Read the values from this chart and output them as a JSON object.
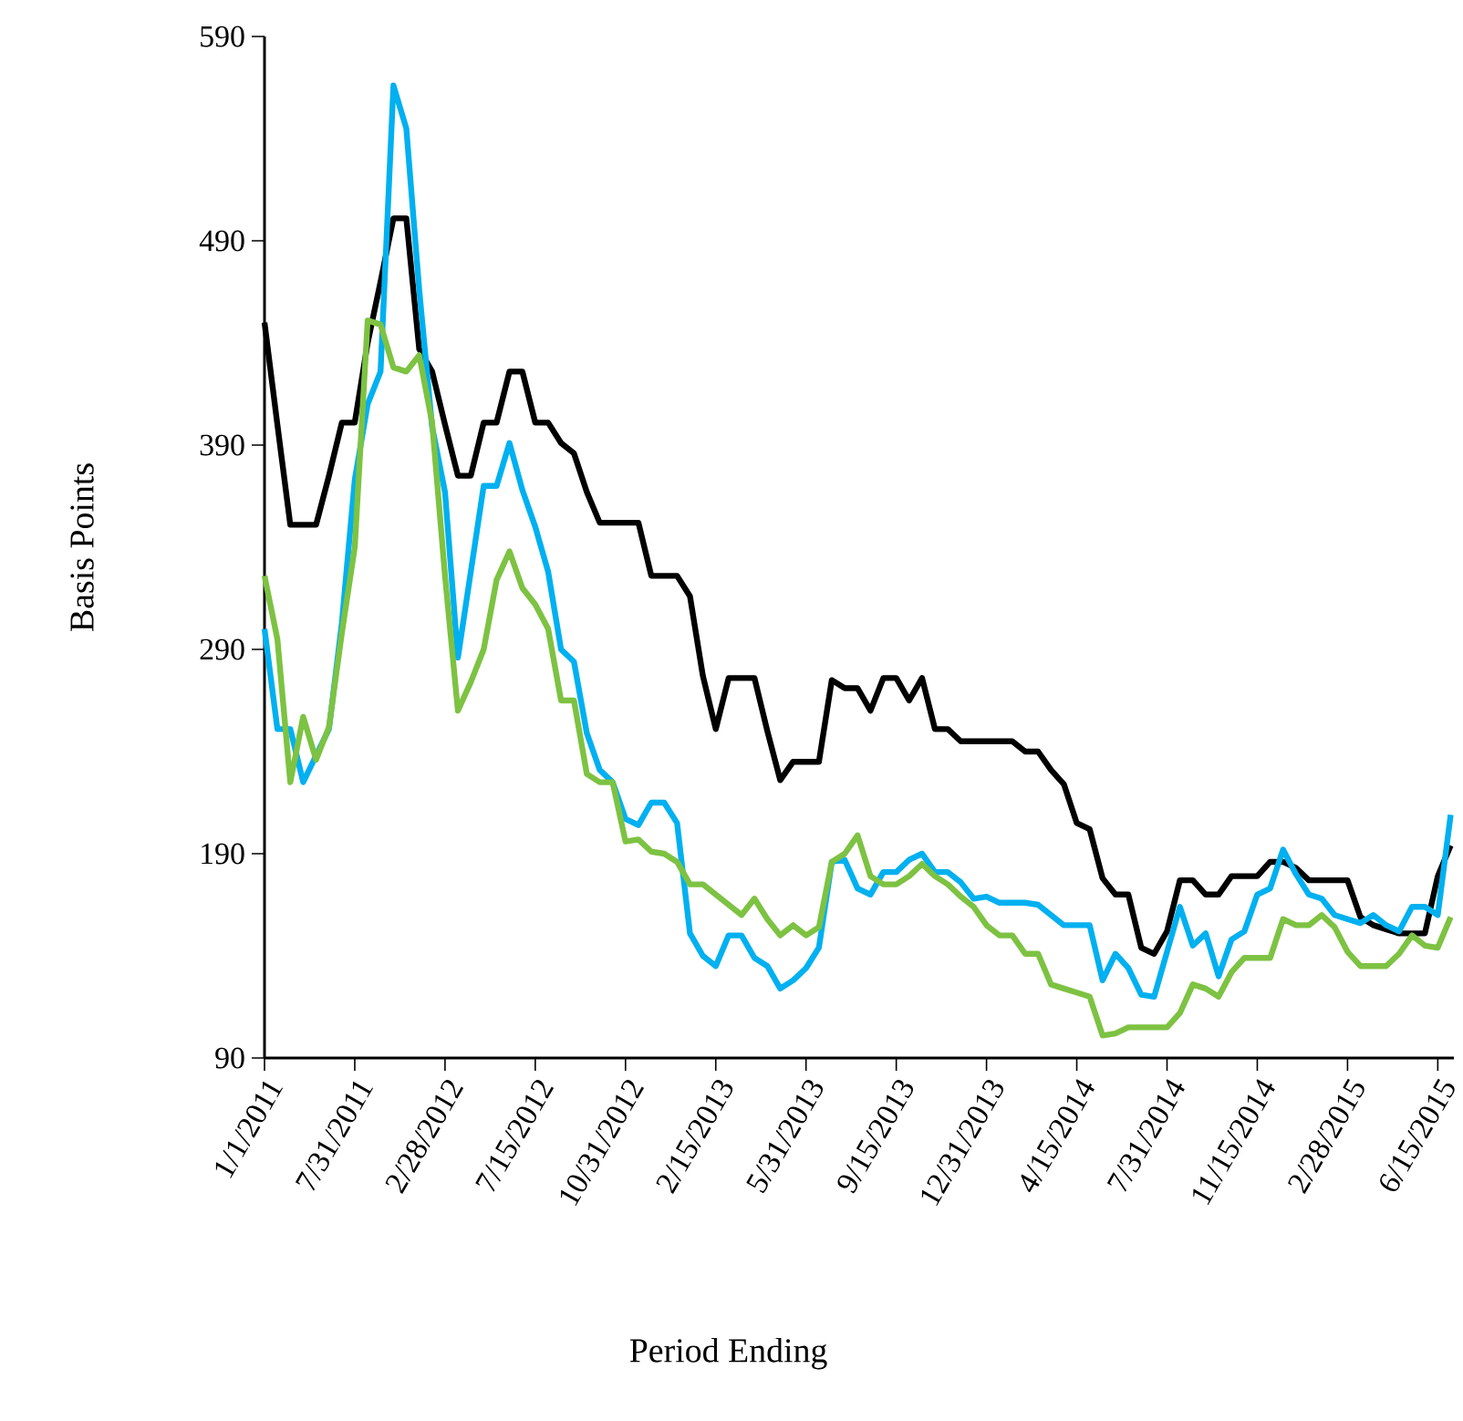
{
  "chart_data": {
    "type": "line",
    "xlabel": "Period Ending",
    "ylabel": "Basis Points",
    "categories": [
      "1/1/2011",
      null,
      null,
      null,
      null,
      null,
      null,
      "7/31/2011",
      null,
      null,
      null,
      null,
      null,
      null,
      "2/28/2012",
      null,
      null,
      null,
      null,
      null,
      null,
      "7/15/2012",
      null,
      null,
      null,
      null,
      null,
      null,
      "10/31/2012",
      null,
      null,
      null,
      null,
      null,
      null,
      "2/15/2013",
      null,
      null,
      null,
      null,
      null,
      null,
      "5/31/2013",
      null,
      null,
      null,
      null,
      null,
      null,
      "9/15/2013",
      null,
      null,
      null,
      null,
      null,
      null,
      "12/31/2013",
      null,
      null,
      null,
      null,
      null,
      null,
      "4/15/2014",
      null,
      null,
      null,
      null,
      null,
      null,
      "7/31/2014",
      null,
      null,
      null,
      null,
      null,
      null,
      "11/15/2014",
      null,
      null,
      null,
      null,
      null,
      null,
      "2/28/2015",
      null,
      null,
      null,
      null,
      null,
      null,
      "6/15/2015",
      null
    ],
    "series": [
      {
        "color": "#000000",
        "values": [
          450,
          400,
          351,
          351,
          351,
          375,
          401,
          401,
          440,
          470,
          501,
          501,
          437,
          426,
          400,
          375,
          375,
          401,
          401,
          426,
          426,
          401,
          401,
          391,
          386,
          367,
          352,
          352,
          352,
          352,
          326,
          326,
          326,
          316,
          277,
          251,
          276,
          276,
          276,
          250,
          226,
          235,
          235,
          235,
          275,
          271,
          271,
          260,
          276,
          276,
          265,
          276,
          251,
          251,
          245,
          245,
          245,
          245,
          245,
          240,
          240,
          231,
          224,
          205,
          202,
          178,
          170,
          170,
          144,
          141,
          152,
          177,
          177,
          170,
          170,
          179,
          179,
          179,
          186,
          186,
          183,
          177,
          177,
          177,
          177,
          159,
          155,
          153,
          151,
          151,
          151,
          179,
          194
        ]
      },
      {
        "color": "#00b0f0",
        "values": [
          300,
          251,
          251,
          225,
          238,
          251,
          303,
          373,
          410,
          426,
          566,
          545,
          466,
          399,
          367,
          286,
          328,
          370,
          370,
          391,
          368,
          350,
          328,
          290,
          284,
          249,
          231,
          225,
          207,
          204,
          215,
          215,
          205,
          151,
          140,
          135,
          150,
          150,
          139,
          135,
          124,
          128,
          134,
          144,
          186,
          187,
          173,
          170,
          181,
          181,
          187,
          190,
          181,
          181,
          176,
          168,
          169,
          166,
          166,
          166,
          165,
          160,
          155,
          155,
          155,
          128,
          141,
          134,
          121,
          120,
          142,
          164,
          145,
          151,
          130,
          148,
          152,
          170,
          173,
          192,
          180,
          170,
          168,
          160,
          158,
          156,
          160,
          155,
          152,
          164,
          164,
          160,
          209
        ]
      },
      {
        "color": "#7dc242",
        "values": [
          326,
          295,
          225,
          257,
          236,
          252,
          298,
          340,
          451,
          449,
          428,
          426,
          434,
          401,
          326,
          260,
          274,
          290,
          324,
          338,
          320,
          312,
          300,
          265,
          265,
          229,
          225,
          225,
          196,
          197,
          191,
          190,
          186,
          175,
          175,
          170,
          165,
          160,
          168,
          158,
          150,
          155,
          150,
          154,
          186,
          190,
          199,
          179,
          175,
          175,
          179,
          185,
          179,
          175,
          169,
          164,
          155,
          150,
          150,
          141,
          141,
          126,
          124,
          122,
          120,
          101,
          102,
          105,
          105,
          105,
          105,
          112,
          126,
          124,
          120,
          132,
          139,
          139,
          139,
          158,
          155,
          155,
          160,
          154,
          142,
          135,
          135,
          135,
          141,
          150,
          145,
          144,
          159
        ]
      }
    ],
    "ylim": [
      90,
      590
    ],
    "yticks": [
      90,
      190,
      290,
      390,
      490,
      590
    ]
  }
}
